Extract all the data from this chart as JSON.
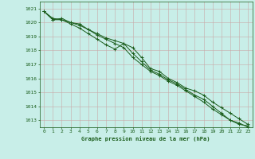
{
  "title": "Graphe pression niveau de la mer (hPa)",
  "bg_color": "#c8eee8",
  "grid_color": "#c8a8a8",
  "line_color": "#1a5c1a",
  "x_labels": [
    "0",
    "1",
    "2",
    "3",
    "4",
    "5",
    "6",
    "7",
    "8",
    "9",
    "10",
    "11",
    "12",
    "13",
    "14",
    "15",
    "16",
    "17",
    "18",
    "19",
    "20",
    "21",
    "22",
    "23"
  ],
  "ylim": [
    1012.5,
    1021.5
  ],
  "yticks": [
    1013,
    1014,
    1015,
    1016,
    1017,
    1018,
    1019,
    1020,
    1021
  ],
  "line1": [
    1020.8,
    1020.2,
    1020.3,
    1020.0,
    1019.9,
    1019.5,
    1019.2,
    1018.9,
    1018.7,
    1018.5,
    1018.2,
    1017.5,
    1016.7,
    1016.5,
    1016.0,
    1015.7,
    1015.3,
    1015.1,
    1014.8,
    1014.3,
    1013.9,
    1013.5,
    1013.1,
    1012.7
  ],
  "line2": [
    1020.8,
    1020.3,
    1020.2,
    1019.9,
    1019.6,
    1019.2,
    1018.8,
    1018.4,
    1018.1,
    1018.5,
    1017.8,
    1017.2,
    1016.6,
    1016.3,
    1015.9,
    1015.6,
    1015.2,
    1014.8,
    1014.5,
    1014.0,
    1013.5,
    1013.0,
    1012.8,
    1012.5
  ],
  "line3": [
    1020.8,
    1020.2,
    1020.2,
    1020.0,
    1019.8,
    1019.5,
    1019.1,
    1018.8,
    1018.5,
    1018.2,
    1017.5,
    1017.0,
    1016.5,
    1016.2,
    1015.8,
    1015.5,
    1015.1,
    1014.7,
    1014.3,
    1013.8,
    1013.4,
    1013.0,
    1012.7,
    1012.6
  ]
}
